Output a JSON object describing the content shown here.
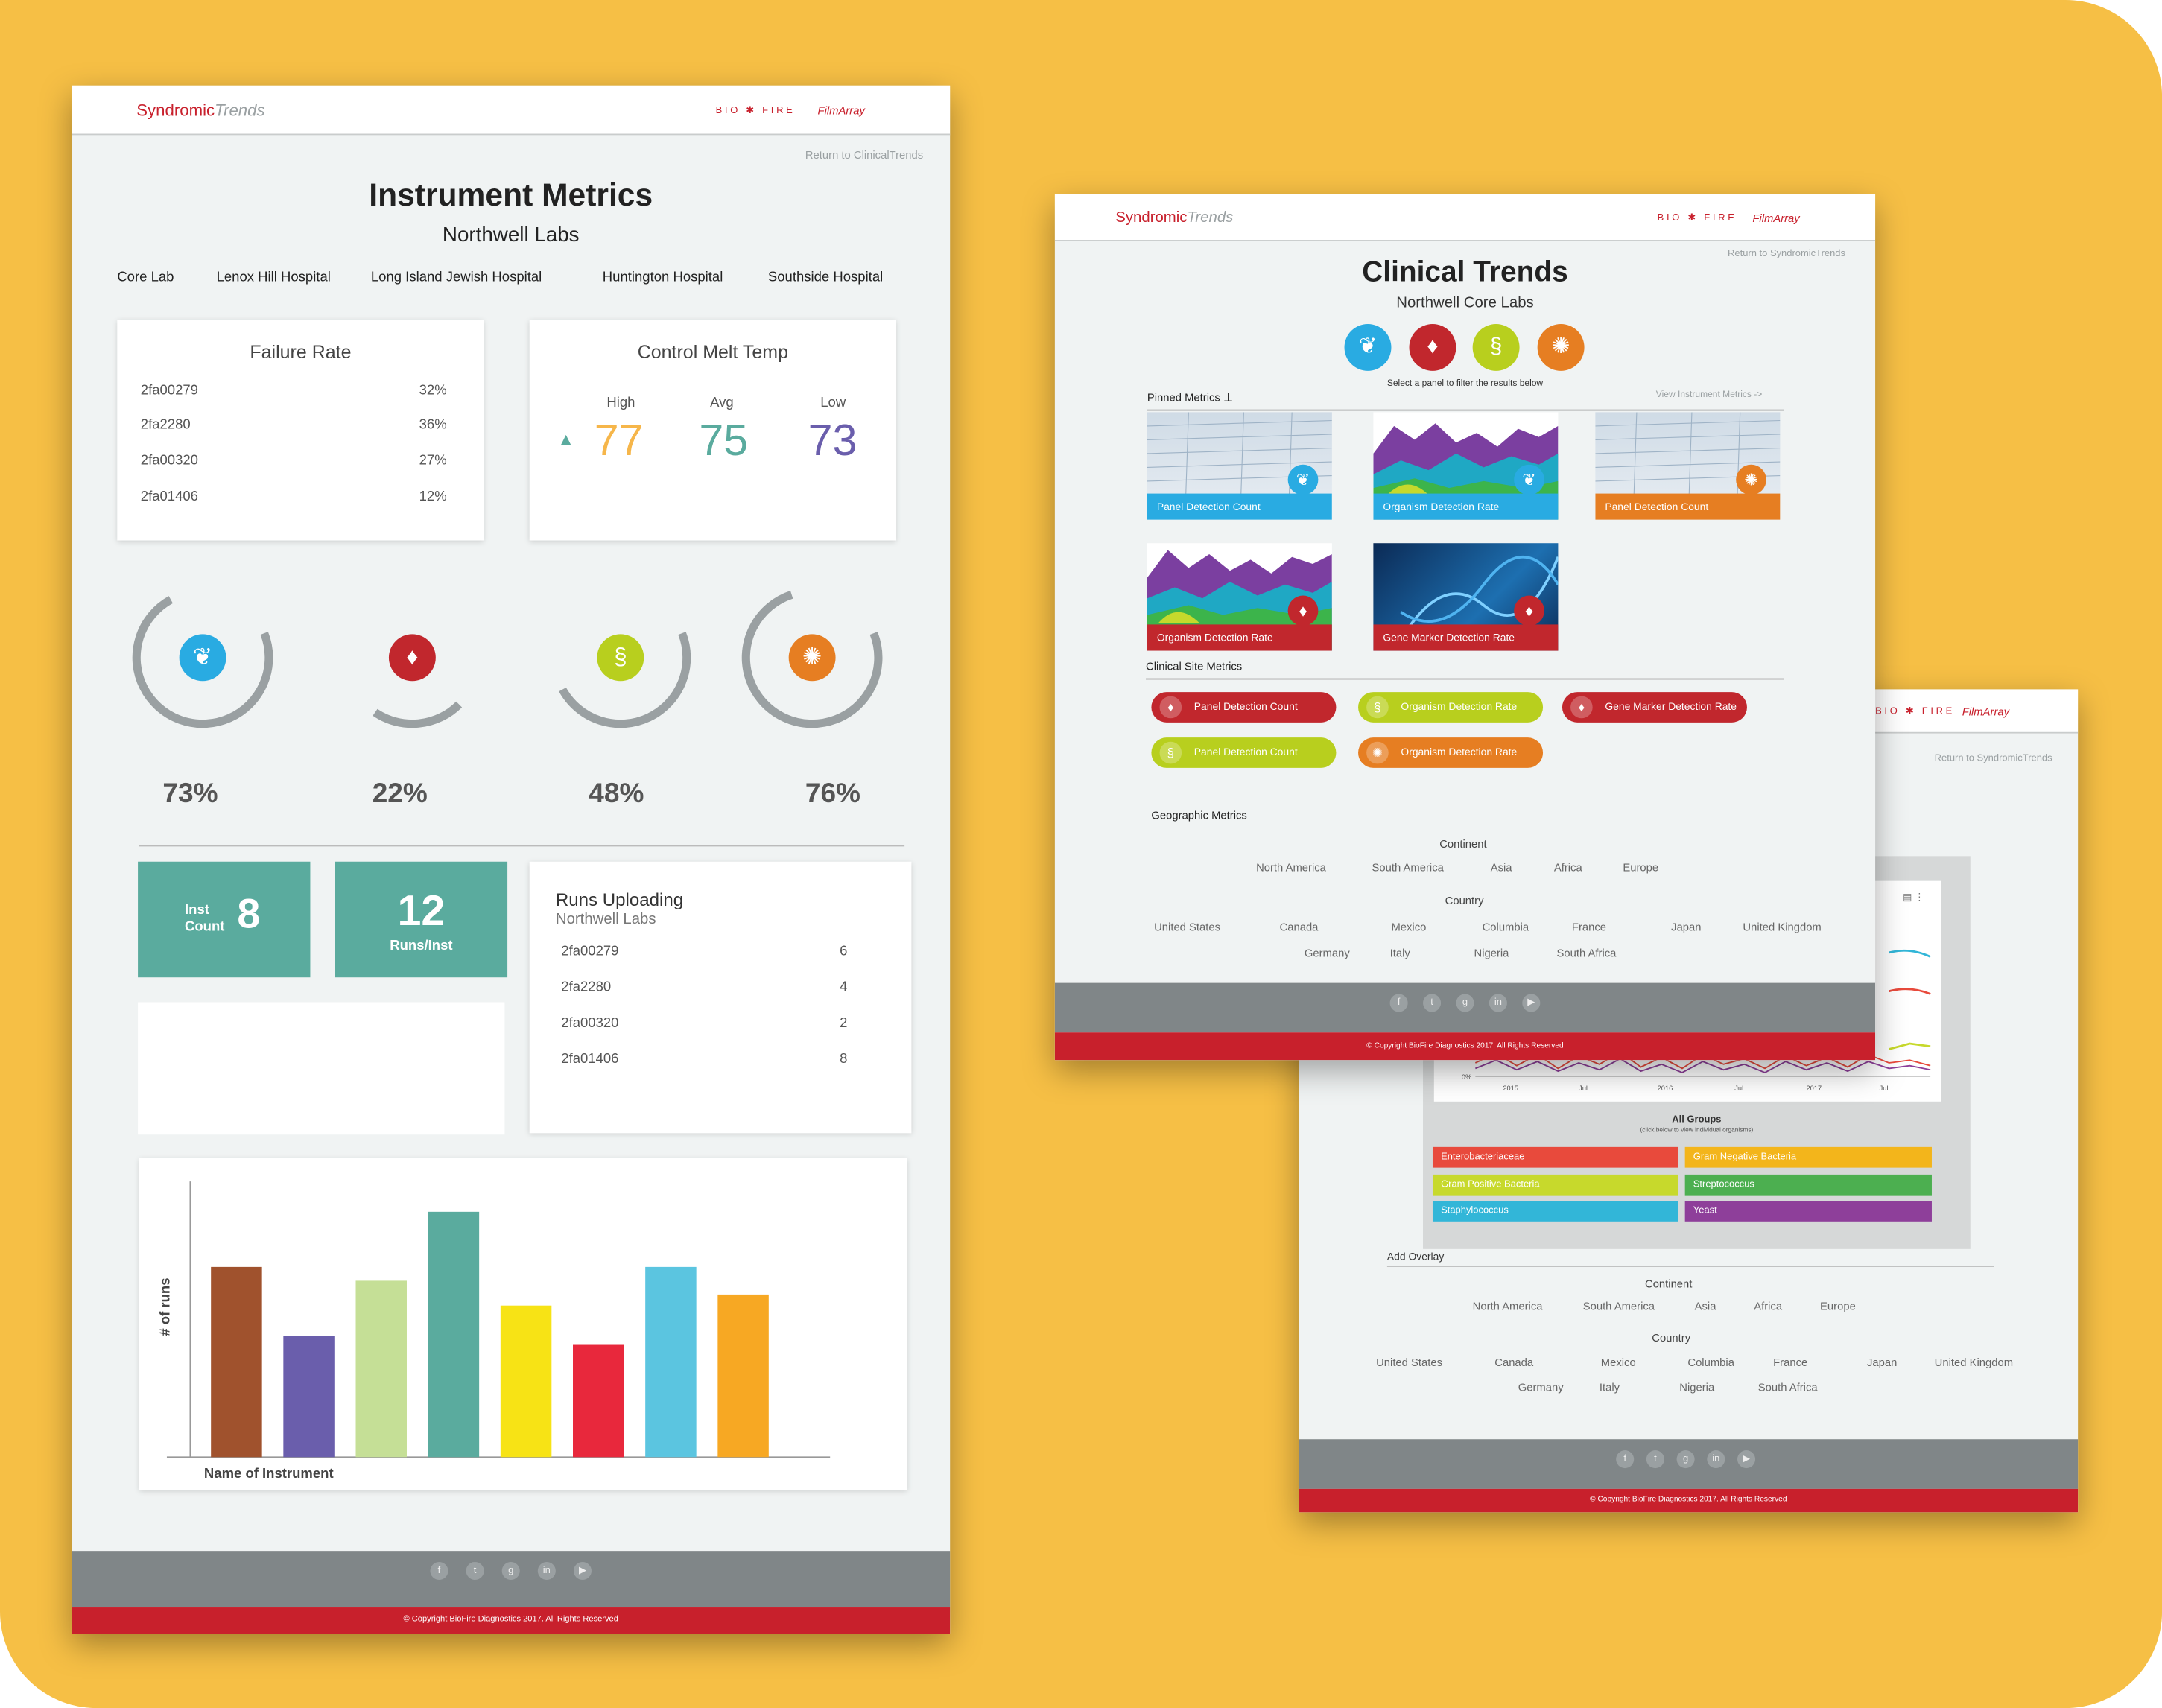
{
  "brand": {
    "name": "Syndromic",
    "name_italic": "Trends",
    "bio": "BIO",
    "fire": "FIRE",
    "filmarray": "FilmArray"
  },
  "instrument": {
    "return_link": "Return to ClinicalTrends",
    "title": "Instrument Metrics",
    "subtitle": "Northwell Labs",
    "tabs": [
      "Core Lab",
      "Lenox Hill Hospital",
      "Long Island Jewish Hospital",
      "Huntington Hospital",
      "Southside Hospital"
    ],
    "failure": {
      "title": "Failure Rate",
      "rows": [
        {
          "id": "2fa00279",
          "val": "32%"
        },
        {
          "id": "2fa2280",
          "val": "36%"
        },
        {
          "id": "2fa00320",
          "val": "27%"
        },
        {
          "id": "2fa01406",
          "val": "12%"
        }
      ]
    },
    "melt": {
      "title": "Control Melt Temp",
      "high_label": "High",
      "high": "77",
      "avg_label": "Avg",
      "avg": "75",
      "low_label": "Low",
      "low": "73"
    },
    "gauges": [
      {
        "pct": "73%",
        "icon": "lungs-icon",
        "color": "#29abe2",
        "level": 0.73
      },
      {
        "pct": "22%",
        "icon": "blood-drop-icon",
        "color": "#c1272d",
        "level": 0.22
      },
      {
        "pct": "48%",
        "icon": "stomach-icon",
        "color": "#b8cf1e",
        "level": 0.48
      },
      {
        "pct": "76%",
        "icon": "brain-icon",
        "color": "#e67e22",
        "level": 0.76
      }
    ],
    "inst_count_label": "Inst Count",
    "inst_count": "8",
    "runs_per_inst": "12",
    "runs_per_inst_label": "Runs/Inst",
    "runs": {
      "title": "Runs Uploading",
      "subtitle": "Northwell Labs",
      "rows": [
        {
          "id": "2fa00279",
          "val": "6"
        },
        {
          "id": "2fa2280",
          "val": "4"
        },
        {
          "id": "2fa00320",
          "val": "2"
        },
        {
          "id": "2fa01406",
          "val": "8"
        }
      ]
    },
    "copyright": "© Copyright BioFire Diagnostics 2017. All Rights Reserved"
  },
  "chart_data": {
    "type": "bar",
    "ylabel": "# of runs",
    "xlabel": "Name of Instrument",
    "categories": [
      "",
      "",
      "",
      "",
      "",
      "",
      "",
      ""
    ],
    "values": [
      69,
      44,
      64,
      89,
      55,
      41,
      69,
      59
    ],
    "ylim": [
      0,
      100
    ],
    "colors": [
      "#a0522d",
      "#6a5eac",
      "#c5df96",
      "#5aab9e",
      "#f7e315",
      "#e8283c",
      "#5bc5e0",
      "#f7a823"
    ]
  },
  "clinical": {
    "return_link": "Return to SyndromicTrends",
    "title": "Clinical Trends",
    "subtitle": "Northwell Core Labs",
    "filter_hint": "Select a panel to filter the results below",
    "pinned_label": "Pinned Metrics",
    "view_link": "View Instrument Metrics ->",
    "tiles": [
      {
        "label": "Panel Detection Count"
      },
      {
        "label": "Organism Detection Rate"
      },
      {
        "label": "Panel Detection Count"
      },
      {
        "label": "Organism Detection Rate"
      },
      {
        "label": "Gene Marker Detection Rate"
      }
    ],
    "site_label": "Clinical Site Metrics",
    "pills": [
      "Panel Detection Count",
      "Organism Detection Rate",
      "Gene Marker Detection Rate",
      "Panel Detection Count",
      "Organism Detection Rate"
    ],
    "geo_label": "Geographic Metrics",
    "continent_label": "Continent",
    "continents": [
      "North America",
      "South America",
      "Asia",
      "Africa",
      "Europe"
    ],
    "country_label": "Country",
    "countries_row1": [
      "United States",
      "Canada",
      "Mexico",
      "Columbia",
      "France",
      "Japan",
      "United Kingdom"
    ],
    "countries_row2": [
      "Germany",
      "Italy",
      "Nigeria",
      "South Africa"
    ],
    "copyright": "© Copyright BioFire Diagnostics 2017. All Rights Reserved"
  },
  "third": {
    "return_link": "Return to SyndromicTrends",
    "axis": [
      "0%",
      "2015",
      "Jul",
      "2016",
      "Jul",
      "2017",
      "Jul"
    ],
    "groups_title": "All Groups",
    "groups_hint": "(click below to view individual organisms)",
    "groups": [
      {
        "name": "Enterobacteriaceae",
        "color": "#e84a3c"
      },
      {
        "name": "Gram Negative Bacteria",
        "color": "#f3b51b"
      },
      {
        "name": "Gram Positive Bacteria",
        "color": "#c7d92c"
      },
      {
        "name": "Streptococcus",
        "color": "#4caf50"
      },
      {
        "name": "Staphylococcus",
        "color": "#32b6d8"
      },
      {
        "name": "Yeast",
        "color": "#8e3f9a"
      }
    ],
    "overlay_label": "Add Overlay",
    "continent_label": "Continent",
    "continents": [
      "North America",
      "South America",
      "Asia",
      "Africa",
      "Europe"
    ],
    "country_label": "Country",
    "countries_row1": [
      "United States",
      "Canada",
      "Mexico",
      "Columbia",
      "France",
      "Japan",
      "United Kingdom"
    ],
    "countries_row2": [
      "Germany",
      "Italy",
      "Nigeria",
      "South Africa"
    ],
    "copyright": "© Copyright BioFire Diagnostics 2017. All Rights Reserved"
  }
}
